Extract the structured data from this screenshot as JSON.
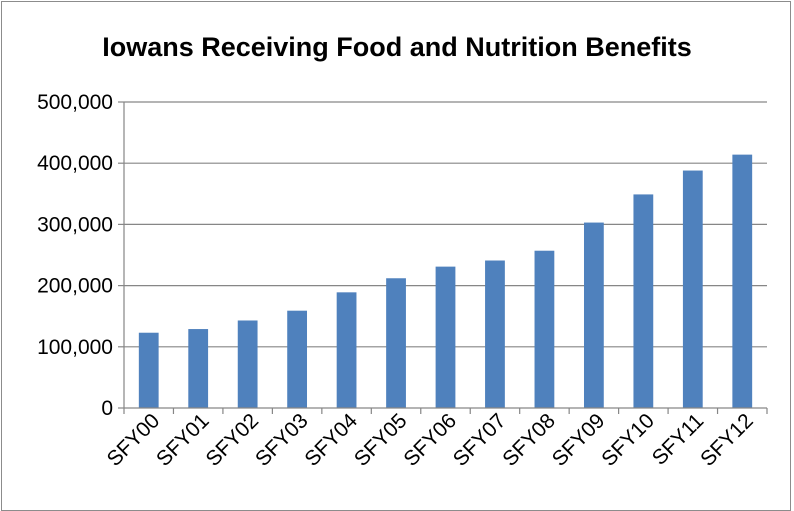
{
  "chart_data": {
    "type": "bar",
    "title": "Iowans Receiving Food and Nutrition Benefits",
    "xlabel": "",
    "ylabel": "",
    "categories": [
      "SFY00",
      "SFY01",
      "SFY02",
      "SFY03",
      "SFY04",
      "SFY05",
      "SFY06",
      "SFY07",
      "SFY08",
      "SFY09",
      "SFY10",
      "SFY11",
      "SFY12"
    ],
    "values": [
      123000,
      129000,
      143000,
      159000,
      189000,
      212000,
      231000,
      241000,
      257000,
      303000,
      349000,
      388000,
      414000
    ],
    "ylim": [
      0,
      500000
    ],
    "yticks": [
      0,
      100000,
      200000,
      300000,
      400000,
      500000
    ],
    "ytick_labels": [
      "0",
      "100,000",
      "200,000",
      "300,000",
      "400,000",
      "500,000"
    ],
    "grid": true,
    "legend": "none",
    "bar_color": "#4f81bd",
    "grid_color": "#868686"
  }
}
